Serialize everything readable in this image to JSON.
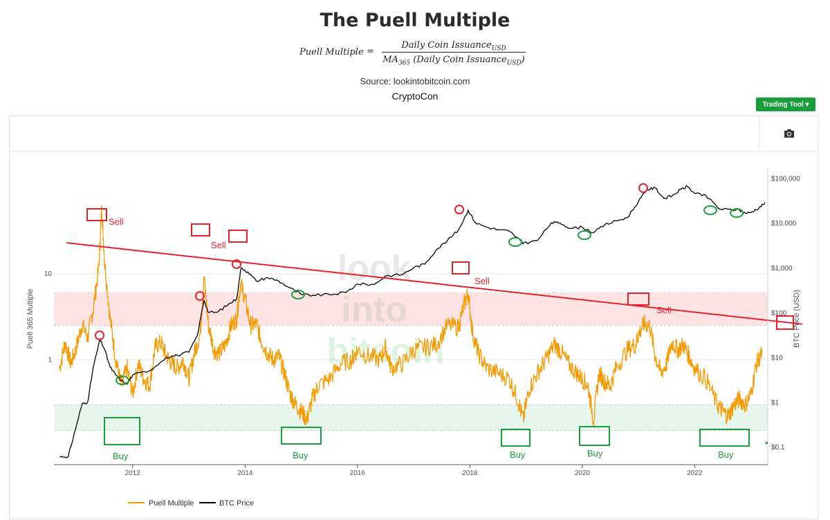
{
  "header": {
    "title": "The Puell Multiple",
    "formula_lhs": "Puell Multiple",
    "formula_eq": "=",
    "formula_num": "Daily Coin Issuance",
    "formula_num_sub": "USD",
    "formula_den_pre": "MA",
    "formula_den_pre_sub": "365",
    "formula_den_mid": " (Daily Coin Issuance",
    "formula_den_sub": "USD",
    "formula_den_post": ")",
    "source": "Source: lookintobitcoin.com",
    "author": "CryptoCon"
  },
  "toolbar": {
    "trading_tool_label": "Trading Tool ▾",
    "camera_icon": "camera-icon"
  },
  "colors": {
    "puell": "#f59a00",
    "btc": "#000000",
    "trend": "#e5202a",
    "sell_box": "#e5202a",
    "buy_box": "#1a9e3b",
    "sell_band": "#fde3e3",
    "buy_band": "#e6f6ec"
  },
  "chart_data": {
    "type": "line",
    "title": "The Puell Multiple",
    "ylabel": "Puell 365 Multiple",
    "y2label": "BTC Price (USD)",
    "x_range": [
      2010.6,
      2023.3
    ],
    "y_range": [
      0.06,
      150
    ],
    "y_scale": "log",
    "y2_range": [
      0.04,
      130000
    ],
    "y2_scale": "log",
    "x_ticks": [
      "2012",
      "2014",
      "2016",
      "2018",
      "2020",
      "2022"
    ],
    "y_ticks": [
      "10",
      "1"
    ],
    "y2_ticks": [
      "$100,000",
      "$10,000",
      "$1,000",
      "$100",
      "$10",
      "$1",
      "$0.1"
    ],
    "sell_zone": [
      2.5,
      6
    ],
    "buy_zone": [
      0.15,
      0.3
    ],
    "trend_line": {
      "from": [
        2010.7,
        23
      ],
      "to": [
        2023.3,
        2.6
      ]
    },
    "legend": [
      "Puell Multiple",
      "BTC Price"
    ],
    "watermark": [
      "look",
      "into",
      "bitcoin"
    ],
    "series": [
      {
        "name": "Puell Multiple",
        "color": "#f59a00",
        "x": [
          2010.7,
          2010.8,
          2010.9,
          2011.0,
          2011.1,
          2011.2,
          2011.3,
          2011.4,
          2011.45,
          2011.5,
          2011.6,
          2011.7,
          2011.8,
          2011.9,
          2012.0,
          2012.1,
          2012.2,
          2012.3,
          2012.4,
          2012.5,
          2012.6,
          2012.7,
          2012.8,
          2012.9,
          2013.0,
          2013.1,
          2013.2,
          2013.27,
          2013.35,
          2013.45,
          2013.55,
          2013.65,
          2013.75,
          2013.85,
          2013.92,
          2014.0,
          2014.1,
          2014.2,
          2014.3,
          2014.4,
          2014.5,
          2014.6,
          2014.7,
          2014.8,
          2014.9,
          2015.0,
          2015.1,
          2015.2,
          2015.3,
          2015.5,
          2015.7,
          2015.9,
          2016.0,
          2016.2,
          2016.4,
          2016.5,
          2016.6,
          2016.8,
          2017.0,
          2017.2,
          2017.4,
          2017.6,
          2017.8,
          2017.9,
          2017.97,
          2018.05,
          2018.15,
          2018.3,
          2018.5,
          2018.7,
          2018.85,
          2018.95,
          2019.05,
          2019.2,
          2019.35,
          2019.5,
          2019.6,
          2019.75,
          2019.9,
          2020.0,
          2020.1,
          2020.2,
          2020.3,
          2020.4,
          2020.5,
          2020.6,
          2020.8,
          2020.95,
          2021.0,
          2021.1,
          2021.2,
          2021.3,
          2021.4,
          2021.5,
          2021.6,
          2021.7,
          2021.8,
          2021.9,
          2022.0,
          2022.2,
          2022.4,
          2022.5,
          2022.6,
          2022.7,
          2022.8,
          2022.9,
          2023.0,
          2023.1,
          2023.2
        ],
        "values": [
          0.8,
          1.6,
          0.9,
          1.4,
          2.6,
          1.8,
          4.0,
          12.0,
          60.0,
          14.0,
          3.0,
          1.0,
          0.5,
          0.8,
          0.4,
          0.9,
          0.6,
          0.5,
          1.4,
          1.6,
          1.1,
          0.9,
          0.8,
          1.0,
          0.6,
          1.2,
          2.0,
          9.0,
          2.5,
          1.3,
          1.2,
          1.5,
          2.5,
          3.0,
          8.0,
          5.0,
          2.5,
          2.6,
          1.6,
          1.2,
          1.0,
          1.1,
          0.7,
          0.4,
          0.3,
          0.25,
          0.2,
          0.35,
          0.5,
          0.6,
          0.9,
          1.0,
          1.3,
          1.1,
          1.0,
          1.4,
          0.8,
          0.9,
          1.3,
          1.4,
          1.5,
          2.5,
          2.4,
          4.5,
          6.0,
          2.0,
          1.2,
          0.8,
          0.7,
          0.6,
          0.35,
          0.2,
          0.45,
          0.7,
          1.0,
          1.5,
          1.3,
          0.9,
          0.7,
          0.6,
          0.5,
          0.2,
          0.7,
          0.55,
          0.5,
          0.8,
          1.3,
          1.5,
          2.0,
          2.6,
          2.5,
          1.1,
          0.7,
          0.9,
          1.6,
          1.3,
          1.5,
          1.1,
          0.8,
          0.6,
          0.3,
          0.25,
          0.22,
          0.3,
          0.35,
          0.3,
          0.4,
          0.9,
          1.2
        ]
      },
      {
        "name": "BTC Price",
        "color": "#000000",
        "x": [
          2010.7,
          2010.85,
          2010.9,
          2011.0,
          2011.1,
          2011.2,
          2011.3,
          2011.42,
          2011.5,
          2011.6,
          2011.7,
          2011.8,
          2011.9,
          2012.0,
          2012.3,
          2012.6,
          2012.8,
          2013.0,
          2013.15,
          2013.27,
          2013.35,
          2013.5,
          2013.7,
          2013.85,
          2013.93,
          2014.05,
          2014.2,
          2014.4,
          2014.6,
          2014.8,
          2015.0,
          2015.2,
          2015.5,
          2015.8,
          2016.0,
          2016.3,
          2016.5,
          2016.8,
          2017.0,
          2017.2,
          2017.4,
          2017.6,
          2017.8,
          2017.97,
          2018.1,
          2018.3,
          2018.5,
          2018.7,
          2018.9,
          2018.95,
          2019.2,
          2019.45,
          2019.6,
          2019.8,
          2020.0,
          2020.2,
          2020.4,
          2020.6,
          2020.8,
          2021.0,
          2021.15,
          2021.3,
          2021.45,
          2021.6,
          2021.75,
          2021.87,
          2022.0,
          2022.2,
          2022.45,
          2022.6,
          2022.8,
          2022.9,
          2023.0,
          2023.15,
          2023.25
        ],
        "values": [
          0.06,
          0.06,
          0.1,
          0.3,
          0.9,
          1.0,
          6,
          25,
          15,
          6,
          4,
          3,
          2.5,
          4,
          5,
          10,
          11,
          13,
          30,
          190,
          100,
          100,
          150,
          200,
          1000,
          800,
          500,
          600,
          500,
          350,
          250,
          240,
          250,
          280,
          430,
          420,
          650,
          700,
          1000,
          1200,
          2500,
          4000,
          7000,
          19000,
          10000,
          8000,
          7000,
          6500,
          4000,
          3500,
          4000,
          10000,
          10000,
          7500,
          8000,
          6000,
          9000,
          11000,
          13000,
          30000,
          55000,
          60000,
          35000,
          40000,
          55000,
          65000,
          45000,
          40000,
          20000,
          20000,
          19000,
          16500,
          17000,
          22000,
          28000
        ]
      }
    ],
    "annotations": [
      {
        "label": "Sell",
        "year": 2011.47
      },
      {
        "label": "Sell",
        "year": 2013.27
      },
      {
        "label": "Sell",
        "year": 2018.0
      },
      {
        "label": "Sell",
        "year": 2021.2
      },
      {
        "label": "Buy",
        "year": 2011.8
      },
      {
        "label": "Buy",
        "year": 2015.0
      },
      {
        "label": "Buy",
        "year": 2018.95
      },
      {
        "label": "Buy",
        "year": 2020.4
      },
      {
        "label": "Buy",
        "year": 2022.7
      }
    ]
  }
}
